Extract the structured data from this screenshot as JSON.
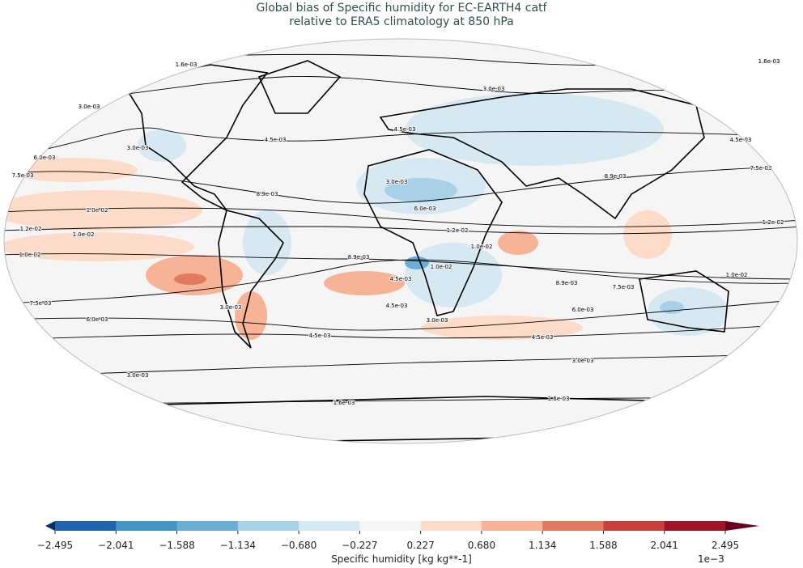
{
  "title": {
    "line1": "Global bias of Specific humidity for EC-EARTH4 catf",
    "line2": "relative to ERA5 climatology at 850 hPa"
  },
  "colorbar": {
    "label": "Specific humidity [kg kg**-1]",
    "exponent": "1e−3",
    "ticks": [
      "−2.495",
      "−2.041",
      "−1.588",
      "−1.134",
      "−0.680",
      "−0.227",
      "0.227",
      "0.680",
      "1.134",
      "1.588",
      "2.041",
      "2.495"
    ],
    "colors": [
      "#053061",
      "#2166ac",
      "#4393c3",
      "#6aaed6",
      "#a8d1e7",
      "#d6e8f2",
      "#f5f5f5",
      "#fcdcc9",
      "#f6b396",
      "#e3795f",
      "#c8403c",
      "#a11528",
      "#67001f"
    ],
    "extend": "both"
  },
  "map": {
    "projection": "Robinson",
    "contour_labels": [
      "1.6e-03",
      "1.6e-03",
      "3.0e-03",
      "3.0e-03",
      "3.0e-03",
      "4.5e-03",
      "4.5e-03",
      "6.0e-03",
      "7.5e-03",
      "8.9e-03",
      "3.0e-03",
      "6.0e-03",
      "1.0e-02",
      "1.2e-02",
      "1.0e-02",
      "1.2e-02",
      "1.0e-02",
      "1.0e-02",
      "8.9e-03",
      "1.0e-02",
      "4.5e-03",
      "3.0e-03",
      "4.5e-03",
      "3.0e-03",
      "7.5e-03",
      "6.0e-03",
      "8.9e-03",
      "7.5e-03",
      "6.0e-03",
      "4.5e-03",
      "4.5e-03",
      "3.0e-03",
      "3.0e-03",
      "1.6e-03",
      "1.6e-03",
      "4.5e-03",
      "7.5e-03",
      "8.9e-03",
      "1.2e-02",
      "1.0e-02"
    ]
  }
}
